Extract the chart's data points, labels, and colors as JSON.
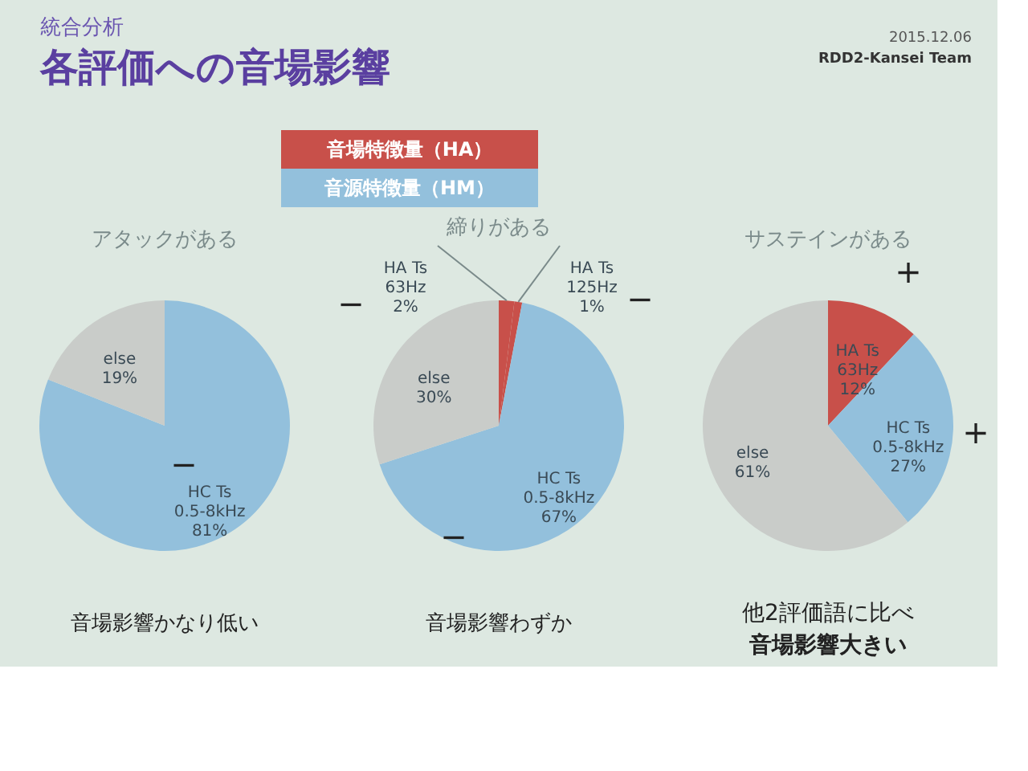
{
  "chart_data": [
    {
      "type": "other",
      "title": "各評価への音場影響",
      "subtitle": "統合分析",
      "annotations": [
        "2015.12.06",
        "RDD2-Kansei Team",
        "音場特徴量（HA）",
        "音源特徴量（HM）"
      ]
    },
    {
      "type": "pie",
      "title": "アタックがある",
      "categories": [
        "HC Ts\n0.5-8kHz",
        "else"
      ],
      "values": [
        81,
        19
      ],
      "value_labels": [
        "81%",
        "19%"
      ],
      "colors": [
        "#93c0dc",
        "#c9ccc9"
      ],
      "annotations": [
        "−",
        "音場影響かなり低い"
      ]
    },
    {
      "type": "pie",
      "title": "締りがある",
      "categories": [
        "HA Ts\n63Hz",
        "HA Ts\n125Hz",
        "HC Ts\n0.5-8kHz",
        "else"
      ],
      "values": [
        2,
        1,
        67,
        30
      ],
      "value_labels": [
        "2%",
        "1%",
        "67%",
        "30%"
      ],
      "colors": [
        "#c8504a",
        "#c8504a",
        "#93c0dc",
        "#c9ccc9"
      ],
      "annotations": [
        "−",
        "−",
        "−",
        "音場影響わずか"
      ]
    },
    {
      "type": "pie",
      "title": "サステインがある",
      "categories": [
        "HA Ts\n63Hz",
        "HC Ts\n0.5-8kHz",
        "else"
      ],
      "values": [
        12,
        27,
        61
      ],
      "value_labels": [
        "12%",
        "27%",
        "61%"
      ],
      "colors": [
        "#c8504a",
        "#93c0dc",
        "#c9ccc9"
      ],
      "annotations": [
        "+",
        "+",
        "他2評価語に比べ",
        "音場影響大きい"
      ]
    }
  ]
}
